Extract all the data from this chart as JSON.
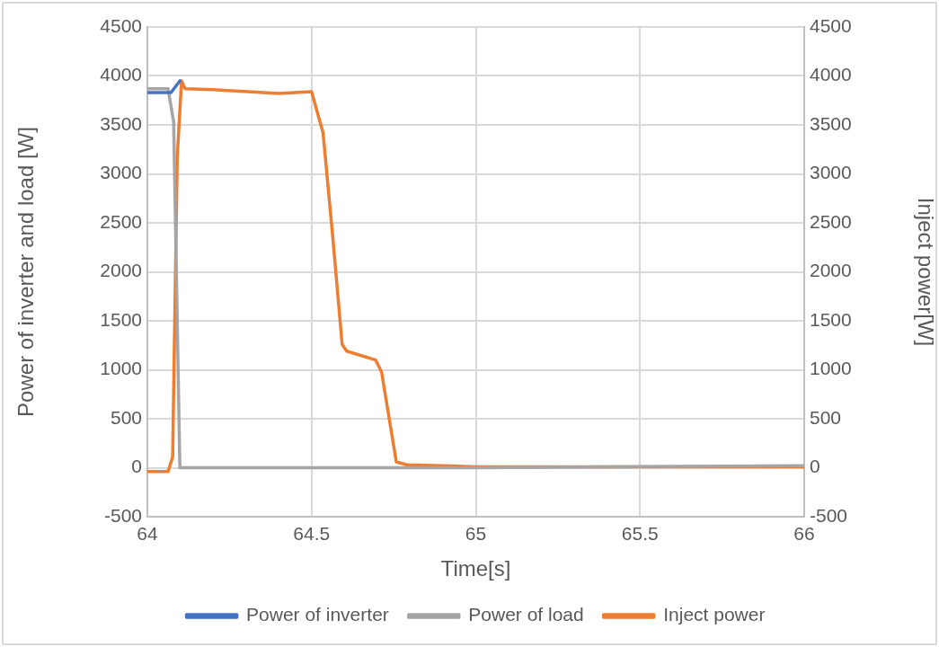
{
  "chart_data": {
    "type": "line",
    "xlabel": "Time[s]",
    "ylabel": "Power of inverter and load [W]",
    "y2label": "Inject power[W]",
    "xlim": [
      64,
      66
    ],
    "xticks": [
      64,
      64.5,
      65,
      65.5,
      66
    ],
    "ylim": [
      -500,
      4500
    ],
    "yticks": [
      -500,
      0,
      500,
      1000,
      1500,
      2000,
      2500,
      3000,
      3500,
      4000,
      4500
    ],
    "y2lim": [
      -500,
      4500
    ],
    "y2ticks": [
      -500,
      0,
      500,
      1000,
      1500,
      2000,
      2500,
      3000,
      3500,
      4000,
      4500
    ],
    "grid": true,
    "legend": "bottom",
    "marker": "none",
    "line_style": "solid",
    "series": [
      {
        "name": "Power of inverter",
        "color": "#4472c4",
        "x": [
          64,
          64.072,
          64.099
        ],
        "values": [
          3830,
          3830,
          3950
        ]
      },
      {
        "name": "Power of load",
        "color": "#a5a5a5",
        "x": [
          64,
          64.063,
          64.08,
          64.099,
          64.11,
          65,
          66
        ],
        "values": [
          3870,
          3870,
          3530,
          0,
          0,
          0,
          20
        ]
      },
      {
        "name": "Inject power",
        "color": "#ed7d31",
        "axis": "y2",
        "x": [
          64,
          64.063,
          64.077,
          64.091,
          64.104,
          64.115,
          64.2,
          64.4,
          64.5,
          64.535,
          64.566,
          64.593,
          64.607,
          64.695,
          64.713,
          64.758,
          64.79,
          65,
          66
        ],
        "values": [
          -40,
          -40,
          110,
          3170,
          3950,
          3870,
          3860,
          3820,
          3840,
          3420,
          2300,
          1260,
          1190,
          1100,
          980,
          60,
          30,
          10,
          10
        ]
      }
    ]
  }
}
